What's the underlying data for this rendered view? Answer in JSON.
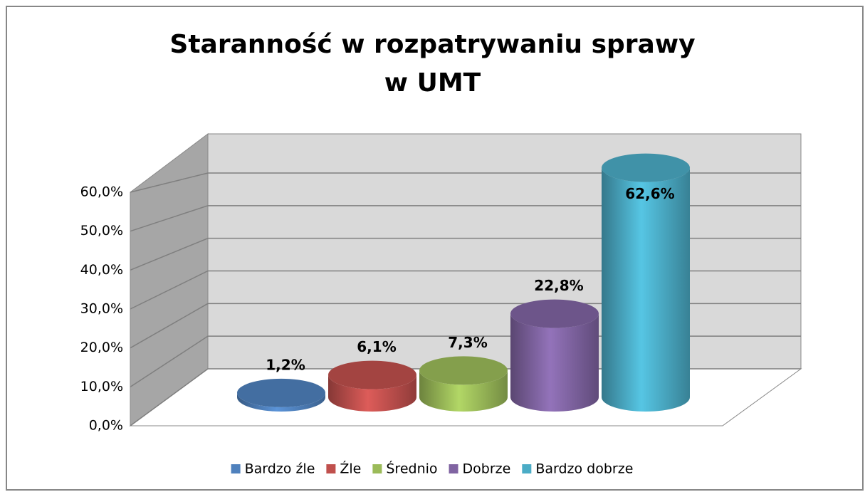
{
  "chart_data": {
    "type": "bar3d",
    "title": "Staranność w rozpatrywaniu sprawy\nw UMT",
    "categories": [
      "Bardzo źle",
      "Źle",
      "Średnio",
      "Dobrze",
      "Bardzo dobrze"
    ],
    "values": [
      1.2,
      6.1,
      7.3,
      22.8,
      62.6
    ],
    "value_labels": [
      "1,2%",
      "6,1%",
      "7,3%",
      "22,8%",
      "62,6%"
    ],
    "colors": [
      "#4f81bd",
      "#c0504d",
      "#9bbb59",
      "#8064a2",
      "#4bacc6"
    ],
    "ylim": [
      0,
      60
    ],
    "yticks": [
      {
        "value": 0,
        "label": "0,0%"
      },
      {
        "value": 10,
        "label": "10,0%"
      },
      {
        "value": 20,
        "label": "20,0%"
      },
      {
        "value": 30,
        "label": "30,0%"
      },
      {
        "value": 40,
        "label": "40,0%"
      },
      {
        "value": 50,
        "label": "50,0%"
      },
      {
        "value": 60,
        "label": "60,0%"
      }
    ],
    "grid": true,
    "legend": "bottom"
  }
}
